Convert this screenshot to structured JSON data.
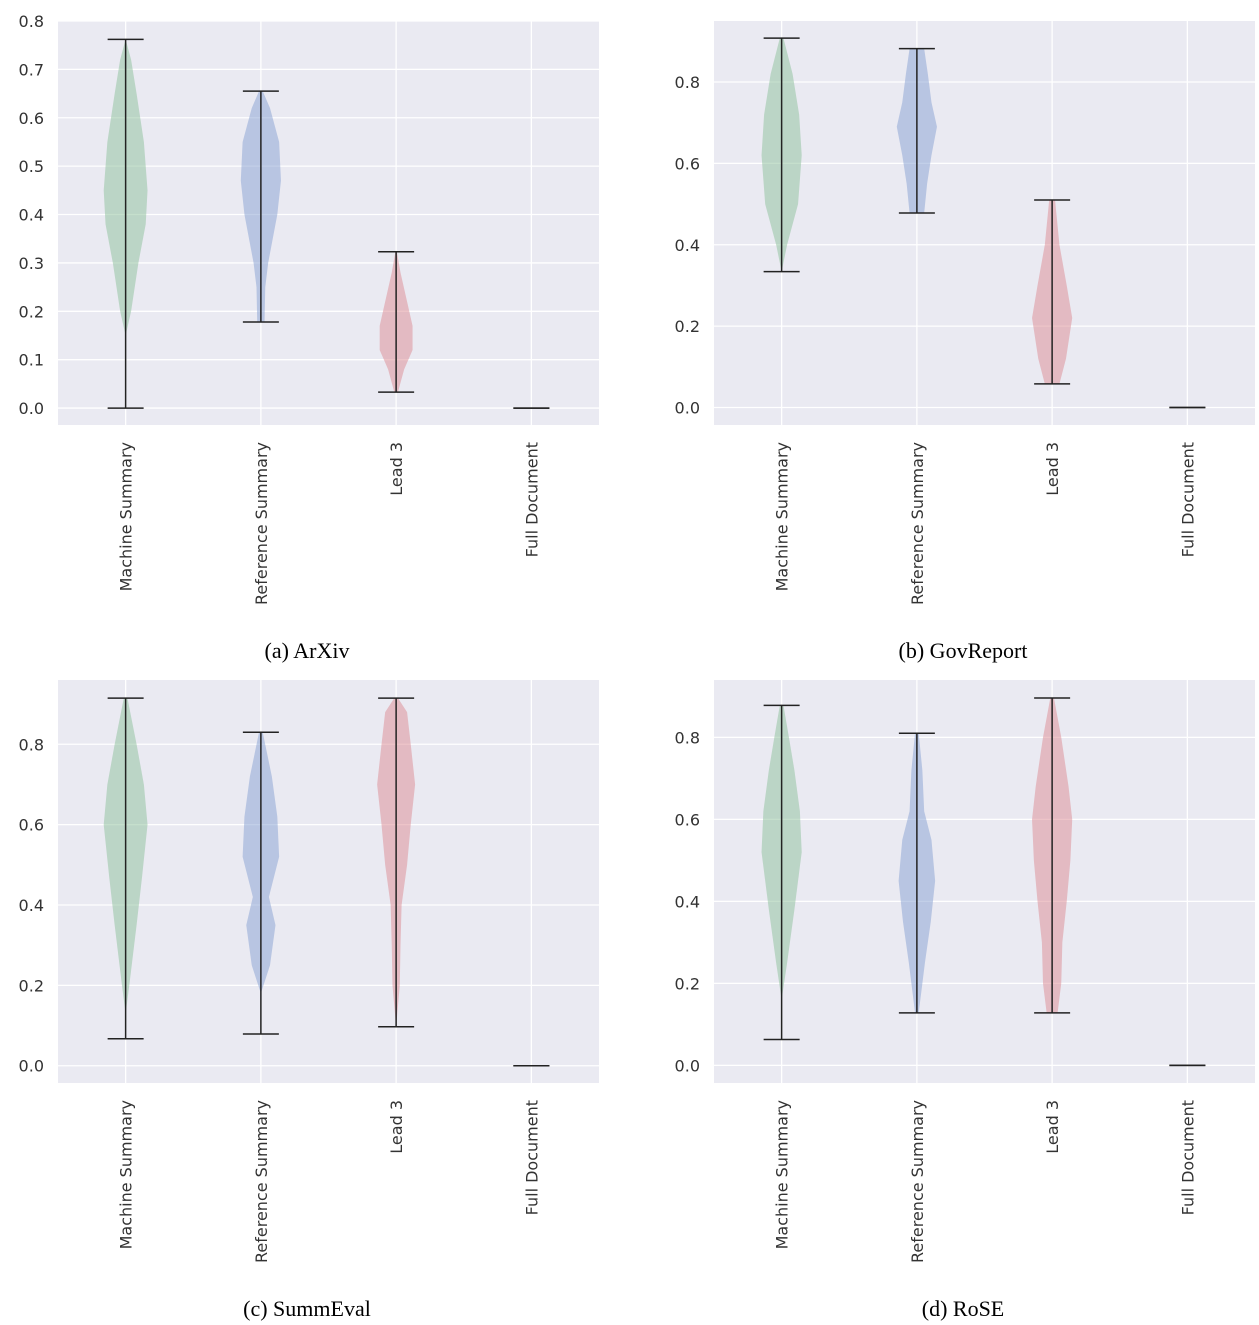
{
  "colors": {
    "plot_bg": "#eaeaf2",
    "grid": "#ffffff",
    "whisker": "#222222",
    "Machine Summary": "#8fc19e",
    "Reference Summary": "#8aa3d3",
    "Lead 3": "#dc8d96"
  },
  "chart_data": [
    {
      "type": "violin",
      "title": "(a) ArXiv",
      "categories": [
        "Machine Summary",
        "Reference Summary",
        "Lead 3",
        "Full Document"
      ],
      "ylim": [
        -0.035,
        0.8
      ],
      "yticks": [
        0.0,
        0.1,
        0.2,
        0.3,
        0.4,
        0.5,
        0.6,
        0.7,
        0.8
      ],
      "ytick_labels": [
        "0.0",
        "0.1",
        "0.2",
        "0.3",
        "0.4",
        "0.5",
        "0.6",
        "0.7",
        "0.8"
      ],
      "grid": true,
      "violins": [
        {
          "category": "Machine Summary",
          "min": 0.0,
          "max": 0.762,
          "profile": [
            [
              0.15,
              0.0
            ],
            [
              0.2,
              0.15
            ],
            [
              0.3,
              0.35
            ],
            [
              0.38,
              0.55
            ],
            [
              0.45,
              0.6
            ],
            [
              0.55,
              0.5
            ],
            [
              0.65,
              0.3
            ],
            [
              0.72,
              0.15
            ],
            [
              0.762,
              0.0
            ]
          ]
        },
        {
          "category": "Reference Summary",
          "min": 0.178,
          "max": 0.655,
          "profile": [
            [
              0.178,
              0.1
            ],
            [
              0.25,
              0.12
            ],
            [
              0.3,
              0.2
            ],
            [
              0.4,
              0.45
            ],
            [
              0.47,
              0.55
            ],
            [
              0.55,
              0.5
            ],
            [
              0.62,
              0.25
            ],
            [
              0.655,
              0.05
            ]
          ]
        },
        {
          "category": "Lead 3",
          "min": 0.033,
          "max": 0.323,
          "profile": [
            [
              0.033,
              0.05
            ],
            [
              0.08,
              0.22
            ],
            [
              0.12,
              0.45
            ],
            [
              0.17,
              0.45
            ],
            [
              0.22,
              0.3
            ],
            [
              0.28,
              0.12
            ],
            [
              0.323,
              0.02
            ]
          ]
        },
        {
          "category": "Full Document",
          "min": 0.0,
          "max": 0.0,
          "profile": []
        }
      ]
    },
    {
      "type": "violin",
      "title": "(b) GovReport",
      "categories": [
        "Machine Summary",
        "Reference Summary",
        "Lead 3",
        "Full Document"
      ],
      "ylim": [
        -0.043,
        0.95
      ],
      "yticks": [
        0.0,
        0.2,
        0.4,
        0.6,
        0.8
      ],
      "ytick_labels": [
        "0.0",
        "0.2",
        "0.4",
        "0.6",
        "0.8"
      ],
      "grid": true,
      "violins": [
        {
          "category": "Machine Summary",
          "min": 0.334,
          "max": 0.908,
          "profile": [
            [
              0.334,
              0.0
            ],
            [
              0.4,
              0.15
            ],
            [
              0.5,
              0.45
            ],
            [
              0.62,
              0.55
            ],
            [
              0.72,
              0.48
            ],
            [
              0.82,
              0.3
            ],
            [
              0.908,
              0.05
            ]
          ]
        },
        {
          "category": "Reference Summary",
          "min": 0.478,
          "max": 0.882,
          "profile": [
            [
              0.478,
              0.2
            ],
            [
              0.55,
              0.28
            ],
            [
              0.62,
              0.4
            ],
            [
              0.69,
              0.55
            ],
            [
              0.75,
              0.4
            ],
            [
              0.82,
              0.3
            ],
            [
              0.882,
              0.2
            ]
          ]
        },
        {
          "category": "Lead 3",
          "min": 0.058,
          "max": 0.51,
          "profile": [
            [
              0.058,
              0.2
            ],
            [
              0.12,
              0.38
            ],
            [
              0.22,
              0.55
            ],
            [
              0.3,
              0.4
            ],
            [
              0.4,
              0.2
            ],
            [
              0.51,
              0.08
            ]
          ]
        },
        {
          "category": "Full Document",
          "min": 0.0,
          "max": 0.0,
          "profile": []
        }
      ]
    },
    {
      "type": "violin",
      "title": "(c) SummEval",
      "categories": [
        "Machine Summary",
        "Reference Summary",
        "Lead 3",
        "Full Document"
      ],
      "ylim": [
        -0.043,
        0.96
      ],
      "yticks": [
        0.0,
        0.2,
        0.4,
        0.6,
        0.8
      ],
      "ytick_labels": [
        "0.0",
        "0.2",
        "0.4",
        "0.6",
        "0.8"
      ],
      "grid": true,
      "violins": [
        {
          "category": "Machine Summary",
          "min": 0.067,
          "max": 0.915,
          "profile": [
            [
              0.13,
              0.0
            ],
            [
              0.2,
              0.1
            ],
            [
              0.35,
              0.3
            ],
            [
              0.47,
              0.45
            ],
            [
              0.6,
              0.6
            ],
            [
              0.7,
              0.5
            ],
            [
              0.8,
              0.3
            ],
            [
              0.915,
              0.05
            ]
          ]
        },
        {
          "category": "Reference Summary",
          "min": 0.079,
          "max": 0.83,
          "profile": [
            [
              0.18,
              0.0
            ],
            [
              0.25,
              0.25
            ],
            [
              0.35,
              0.4
            ],
            [
              0.42,
              0.22
            ],
            [
              0.52,
              0.5
            ],
            [
              0.62,
              0.45
            ],
            [
              0.72,
              0.3
            ],
            [
              0.83,
              0.05
            ]
          ]
        },
        {
          "category": "Lead 3",
          "min": 0.097,
          "max": 0.915,
          "profile": [
            [
              0.097,
              0.0
            ],
            [
              0.2,
              0.1
            ],
            [
              0.3,
              0.12
            ],
            [
              0.4,
              0.15
            ],
            [
              0.5,
              0.3
            ],
            [
              0.6,
              0.4
            ],
            [
              0.7,
              0.52
            ],
            [
              0.8,
              0.4
            ],
            [
              0.88,
              0.3
            ],
            [
              0.915,
              0.05
            ]
          ]
        },
        {
          "category": "Full Document",
          "min": 0.0,
          "max": 0.0,
          "profile": []
        }
      ]
    },
    {
      "type": "violin",
      "title": "(d) RoSE",
      "categories": [
        "Machine Summary",
        "Reference Summary",
        "Lead 3",
        "Full Document"
      ],
      "ylim": [
        -0.043,
        0.94
      ],
      "yticks": [
        0.0,
        0.2,
        0.4,
        0.6,
        0.8
      ],
      "ytick_labels": [
        "0.0",
        "0.2",
        "0.4",
        "0.6",
        "0.8"
      ],
      "grid": true,
      "violins": [
        {
          "category": "Machine Summary",
          "min": 0.063,
          "max": 0.878,
          "profile": [
            [
              0.16,
              0.0
            ],
            [
              0.25,
              0.15
            ],
            [
              0.38,
              0.35
            ],
            [
              0.52,
              0.55
            ],
            [
              0.62,
              0.5
            ],
            [
              0.72,
              0.35
            ],
            [
              0.8,
              0.2
            ],
            [
              0.878,
              0.05
            ]
          ]
        },
        {
          "category": "Reference Summary",
          "min": 0.128,
          "max": 0.81,
          "profile": [
            [
              0.128,
              0.05
            ],
            [
              0.25,
              0.22
            ],
            [
              0.35,
              0.38
            ],
            [
              0.45,
              0.5
            ],
            [
              0.55,
              0.4
            ],
            [
              0.62,
              0.2
            ],
            [
              0.72,
              0.15
            ],
            [
              0.81,
              0.05
            ]
          ]
        },
        {
          "category": "Lead 3",
          "min": 0.128,
          "max": 0.896,
          "profile": [
            [
              0.128,
              0.15
            ],
            [
              0.2,
              0.25
            ],
            [
              0.3,
              0.28
            ],
            [
              0.4,
              0.4
            ],
            [
              0.5,
              0.5
            ],
            [
              0.6,
              0.55
            ],
            [
              0.68,
              0.45
            ],
            [
              0.8,
              0.25
            ],
            [
              0.896,
              0.05
            ]
          ]
        },
        {
          "category": "Full Document",
          "min": 0.0,
          "max": 0.0,
          "profile": []
        }
      ]
    }
  ]
}
